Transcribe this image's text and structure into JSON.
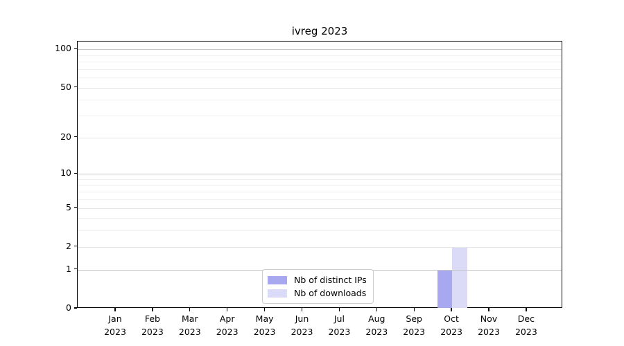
{
  "chart_data": {
    "type": "bar",
    "title": "ivreg 2023",
    "xlabel": "",
    "ylabel": "",
    "y_scale": "log1p",
    "grid": true,
    "legend_position": "bottom-center",
    "categories": [
      "Jan 2023",
      "Feb 2023",
      "Mar 2023",
      "Apr 2023",
      "May 2023",
      "Jun 2023",
      "Jul 2023",
      "Aug 2023",
      "Sep 2023",
      "Oct 2023",
      "Nov 2023",
      "Dec 2023"
    ],
    "x_tick_labels": [
      {
        "month": "Jan",
        "year": "2023"
      },
      {
        "month": "Feb",
        "year": "2023"
      },
      {
        "month": "Mar",
        "year": "2023"
      },
      {
        "month": "Apr",
        "year": "2023"
      },
      {
        "month": "May",
        "year": "2023"
      },
      {
        "month": "Jun",
        "year": "2023"
      },
      {
        "month": "Jul",
        "year": "2023"
      },
      {
        "month": "Aug",
        "year": "2023"
      },
      {
        "month": "Sep",
        "year": "2023"
      },
      {
        "month": "Oct",
        "year": "2023"
      },
      {
        "month": "Nov",
        "year": "2023"
      },
      {
        "month": "Dec",
        "year": "2023"
      }
    ],
    "y_axis": {
      "top_value": 115,
      "major_ticks": [
        {
          "value": 0,
          "label": "0",
          "grid": "none"
        },
        {
          "value": 1,
          "label": "1",
          "grid": "strong"
        },
        {
          "value": 2,
          "label": "2",
          "grid": "light"
        },
        {
          "value": 5,
          "label": "5",
          "grid": "light"
        },
        {
          "value": 10,
          "label": "10",
          "grid": "strong"
        },
        {
          "value": 20,
          "label": "20",
          "grid": "light"
        },
        {
          "value": 50,
          "label": "50",
          "grid": "light"
        },
        {
          "value": 100,
          "label": "100",
          "grid": "strong"
        }
      ],
      "minor_ticks": [
        3,
        4,
        6,
        7,
        8,
        9,
        30,
        40,
        60,
        70,
        80,
        90
      ]
    },
    "series": [
      {
        "name": "Nb of distinct IPs",
        "color": "#a8a8f0",
        "values": [
          0,
          0,
          0,
          0,
          0,
          0,
          0,
          0,
          0,
          1,
          0,
          0
        ]
      },
      {
        "name": "Nb of downloads",
        "color": "#dbdbf8",
        "values": [
          0,
          0,
          0,
          0,
          0,
          0,
          0,
          0,
          0,
          2,
          0,
          0
        ]
      }
    ]
  },
  "colors": {
    "background": "#ffffff",
    "axis": "#000000",
    "grid_strong": "#c6c6c6",
    "grid_light": "#e4e4e4",
    "grid_minor": "#efefef",
    "legend_border": "#cccccc",
    "text": "#000000"
  }
}
